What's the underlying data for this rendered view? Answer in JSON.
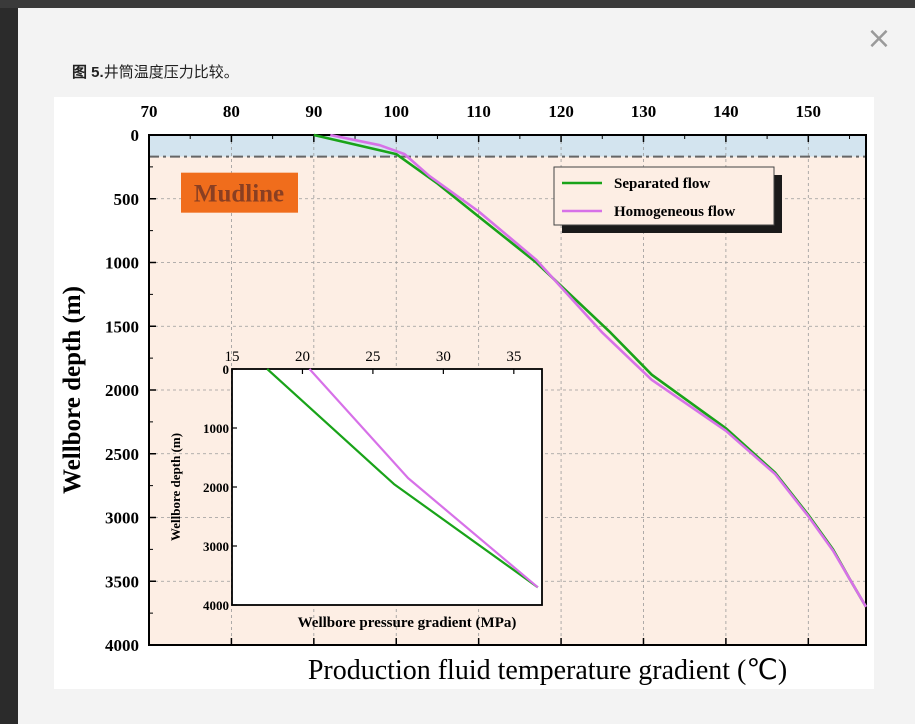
{
  "modal": {
    "close_glyph": "×",
    "caption_label": "图 5.",
    "caption_text": "井筒温度压力比较。"
  },
  "colors": {
    "separated": "#19a319",
    "homogeneous": "#d771e8",
    "mudline_zone": "#d3e4ef",
    "plot_bg": "#fdeee4",
    "mudline_badge": "#f06d1c"
  },
  "chart_data": [
    {
      "type": "line",
      "title": "",
      "xlabel": "Production fluid temperature gradient (℃)",
      "ylabel": "Wellbore depth (m)",
      "x_axis_position": "top",
      "xlim": [
        70,
        157
      ],
      "ylim": [
        0,
        4000
      ],
      "y_inverted": true,
      "xticks": [
        70,
        80,
        90,
        100,
        110,
        120,
        130,
        140,
        150
      ],
      "yticks": [
        0,
        500,
        1000,
        1500,
        2000,
        2500,
        3000,
        3500,
        4000
      ],
      "grid": true,
      "legend": "top-right",
      "annotation": "Mudline",
      "mudline_depth": 170,
      "series": [
        {
          "name": "Separated flow",
          "color": "#19a319",
          "x": [
            90,
            100,
            105,
            110,
            117,
            126,
            131,
            140,
            146,
            150,
            153,
            155,
            157
          ],
          "y": [
            0,
            150,
            380,
            640,
            1000,
            1550,
            1880,
            2300,
            2650,
            2980,
            3250,
            3480,
            3700
          ]
        },
        {
          "name": "Homogeneous flow",
          "color": "#d771e8",
          "x": [
            92,
            98,
            101,
            104,
            110,
            117,
            125,
            131,
            140,
            146,
            150,
            153,
            155,
            157
          ],
          "y": [
            0,
            80,
            150,
            320,
            600,
            980,
            1550,
            1920,
            2320,
            2660,
            2990,
            3260,
            3480,
            3700
          ]
        }
      ]
    },
    {
      "type": "line",
      "title": "",
      "xlabel": "Wellbore pressure gradient (MPa)",
      "ylabel": "Wellbore depth (m)",
      "x_axis_position": "top",
      "xlim": [
        15,
        37
      ],
      "ylim": [
        0,
        4000
      ],
      "y_inverted": true,
      "xticks": [
        15,
        20,
        25,
        30,
        35
      ],
      "yticks": [
        0,
        1000,
        2000,
        3000,
        4000
      ],
      "grid": false,
      "series": [
        {
          "name": "",
          "color": "#19a319",
          "x": [
            17.5,
            26.5,
            36.7
          ],
          "y": [
            0,
            1950,
            3700
          ]
        },
        {
          "name": "",
          "color": "#d771e8",
          "x": [
            20.5,
            27.5,
            36.7
          ],
          "y": [
            0,
            1850,
            3700
          ]
        }
      ]
    }
  ]
}
